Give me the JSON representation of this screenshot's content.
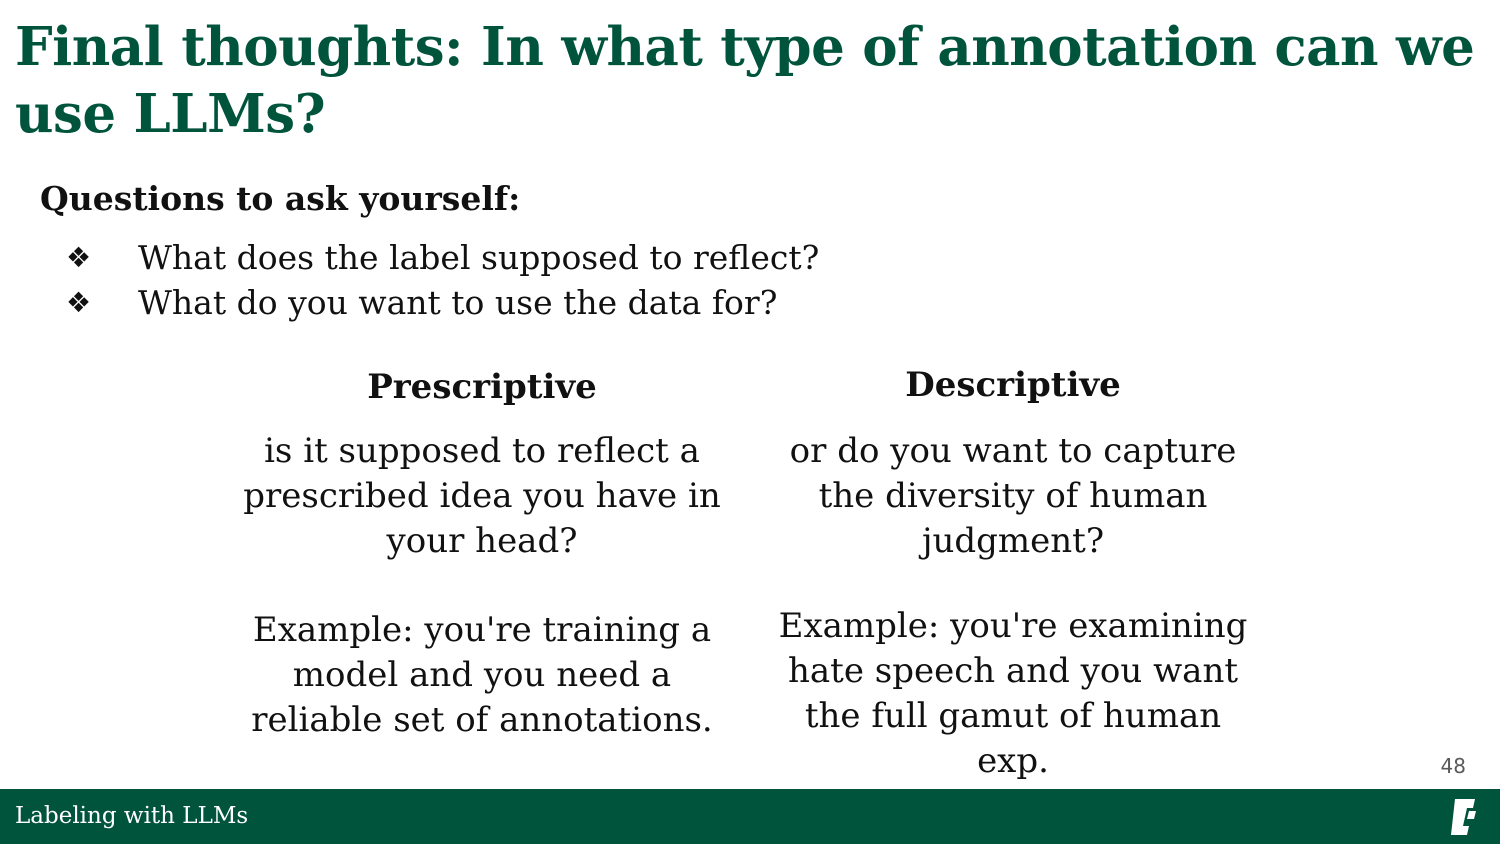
{
  "slide": {
    "title": "Final thoughts: In what type of annotation can we use LLMs?",
    "subheading": "Questions to ask yourself:",
    "bullets": [
      "What does the label supposed to reflect?",
      "What do you want to use the data for?"
    ],
    "bullet_glyph": "❖",
    "columns": [
      {
        "heading": "Prescriptive",
        "question": "is it supposed to reflect a prescribed idea you have in your head?",
        "example": "Example: you're training a model and you need a reliable set of annotations."
      },
      {
        "heading": "Descriptive",
        "question": "or do you want to capture the diversity of human judgment?",
        "example": "Example: you're examining hate speech and you want the full gamut of human exp."
      }
    ],
    "page_number": "48"
  },
  "footer": {
    "label": "Labeling with LLMs",
    "logo_icon": "university-logo-icon"
  },
  "colors": {
    "brand_green": "#00543c",
    "text": "#111111",
    "page_number": "#595959"
  }
}
